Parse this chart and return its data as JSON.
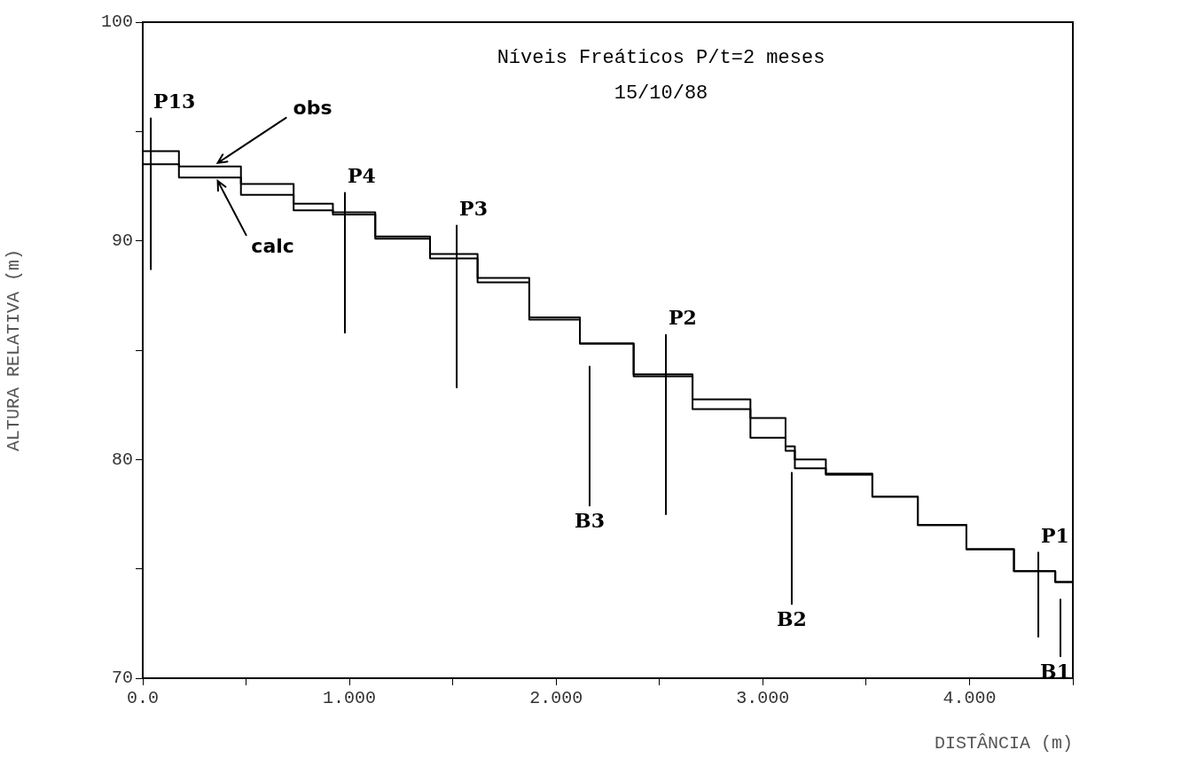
{
  "chart_data": {
    "type": "step",
    "title": "Níveis Freáticos P/t=2 meses",
    "subtitle": "15/10/88",
    "xlabel": "DISTÂNCIA (m)",
    "ylabel": "ALTURA RELATIVA (m)",
    "x": [
      0,
      0.35,
      0.6,
      0.86,
      0.98,
      1.27,
      1.51,
      1.73,
      2.01,
      2.22,
      2.53,
      2.79,
      3.09,
      3.13,
      3.18,
      3.43,
      3.63,
      3.87,
      4.1,
      4.33,
      4.5
    ],
    "series": [
      {
        "color": "#000000",
        "values": [
          94.1,
          93.4,
          92.6,
          91.7,
          91.3,
          90.2,
          89.4,
          88.3,
          86.5,
          85.3,
          83.9,
          82.75,
          81.9,
          80.4,
          80.0,
          79.35,
          78.3,
          77.0,
          75.9,
          74.9,
          74.4
        ]
      },
      {
        "color": "#000000",
        "values": [
          93.5,
          92.9,
          92.1,
          91.4,
          91.2,
          90.1,
          89.2,
          88.1,
          86.4,
          85.3,
          83.8,
          82.3,
          81.0,
          80.6,
          79.6,
          79.3,
          78.3,
          77.0,
          75.9,
          74.9,
          74.4
        ]
      },
      {
        "type": "line",
        "color": "#000000",
        "x": [
          0.039,
          0.039
        ],
        "values": [
          95.6,
          88.7
        ]
      },
      {
        "type": "line",
        "color": "#000000",
        "x": [
          0.978,
          0.978
        ],
        "values": [
          92.2,
          85.8
        ]
      },
      {
        "type": "line",
        "color": "#000000",
        "x": [
          1.519,
          1.519
        ],
        "values": [
          90.7,
          83.3
        ]
      },
      {
        "type": "line",
        "color": "#000000",
        "x": [
          2.162,
          2.162
        ],
        "values": [
          84.25,
          77.9
        ]
      },
      {
        "type": "line",
        "color": "#000000",
        "x": [
          2.531,
          2.531
        ],
        "values": [
          85.7,
          77.5
        ]
      },
      {
        "type": "line",
        "color": "#000000",
        "x": [
          3.14,
          3.14
        ],
        "values": [
          79.4,
          73.4
        ]
      },
      {
        "type": "line",
        "color": "#000000",
        "x": [
          4.333,
          4.333
        ],
        "values": [
          75.75,
          71.9
        ]
      },
      {
        "type": "line",
        "color": "#000000",
        "x": [
          4.44,
          4.44
        ],
        "values": [
          73.6,
          71.0
        ]
      }
    ],
    "annotations": [
      {
        "text": "obs",
        "x": 0.35,
        "y": 93.4
      },
      {
        "text": "calc",
        "x": 0.35,
        "y": 92.9
      },
      {
        "text": "P13",
        "x": 0.039,
        "y": 95.6
      },
      {
        "text": "P4",
        "x": 0.978,
        "y": 92.2
      },
      {
        "text": "P3",
        "x": 1.519,
        "y": 90.7
      },
      {
        "text": "B3",
        "x": 2.162,
        "y": 77.9
      },
      {
        "text": "P2",
        "x": 2.531,
        "y": 85.7
      },
      {
        "text": "B2",
        "x": 3.14,
        "y": 73.4
      },
      {
        "text": "P1",
        "x": 4.333,
        "y": 75.75
      },
      {
        "text": "B1",
        "x": 4.44,
        "y": 71.0
      }
    ],
    "xlim": [
      0,
      4.5
    ],
    "ylim": [
      70,
      100
    ],
    "xticks": [
      {
        "value": 0,
        "label": "0.0"
      },
      {
        "value": 0.5,
        "label": null
      },
      {
        "value": 1,
        "label": "1.000"
      },
      {
        "value": 1.5,
        "label": null
      },
      {
        "value": 2,
        "label": "2.000"
      },
      {
        "value": 2.5,
        "label": null
      },
      {
        "value": 3,
        "label": "3.000"
      },
      {
        "value": 3.5,
        "label": null
      },
      {
        "value": 4,
        "label": "4.000"
      },
      {
        "value": 4.5,
        "label": null
      }
    ],
    "yticks": [
      70,
      {
        "value": 75,
        "label": null
      },
      80,
      {
        "value": 85,
        "label": null
      },
      90,
      {
        "value": 95,
        "label": null
      },
      100
    ],
    "grid": false,
    "legend": false,
    "marker": "none"
  }
}
